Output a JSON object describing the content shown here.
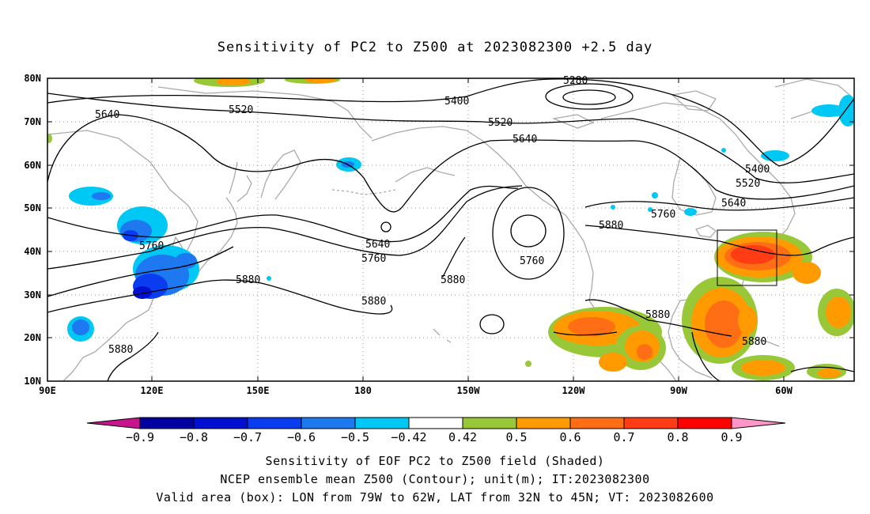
{
  "title": "Sensitivity of PC2 to Z500 at 2023082300 +2.5 day",
  "axes": {
    "lat_labels": [
      "80N",
      "70N",
      "60N",
      "50N",
      "40N",
      "30N",
      "20N",
      "10N"
    ],
    "lon_labels": [
      "90E",
      "120E",
      "150E",
      "180",
      "150W",
      "120W",
      "90W",
      "60W"
    ]
  },
  "contour_labels": {
    "c5280": "5280",
    "c5400a": "5400",
    "c5400b": "5400",
    "c5520a": "5520",
    "c5520b": "5520",
    "c5520c": "5520",
    "c5640a": "5640",
    "c5640b": "5640",
    "c5640c": "5640",
    "c5640d": "5640",
    "c5760a": "5760",
    "c5760b": "5760",
    "c5760c": "5760",
    "c5760d": "5760",
    "c5880a": "5880",
    "c5880b": "5880",
    "c5880c": "5880",
    "c5880d": "5880",
    "c5880e": "5880",
    "c5880f": "5880",
    "c5880g": "5880"
  },
  "colorbar": {
    "labels": [
      "-0.9",
      "-0.8",
      "-0.7",
      "-0.6",
      "-0.5",
      "-0.42",
      "0.42",
      "0.5",
      "0.6",
      "0.7",
      "0.8",
      "0.9"
    ],
    "colors": [
      "#0000a0",
      "#0010d0",
      "#0a3cf0",
      "#1e78f0",
      "#00c8f5",
      "#ffffff",
      "#98c838",
      "#ff9b00",
      "#ff6e14",
      "#ff3c14",
      "#ff0000"
    ],
    "low_extend_color": "#c8148c",
    "high_extend_color": "#ff96c8"
  },
  "valid_box": {
    "lon_west": "79W",
    "lon_east": "62W",
    "lat_south": "32N",
    "lat_north": "45N"
  },
  "captions": {
    "line1": "Sensitivity of EOF PC2 to Z500 field (Shaded)",
    "line2": "NCEP ensemble mean Z500 (Contour); unit(m); IT:2023082300",
    "line3": "Valid area (box): LON from 79W to 62W, LAT from 32N to 45N; VT: 2023082600"
  }
}
